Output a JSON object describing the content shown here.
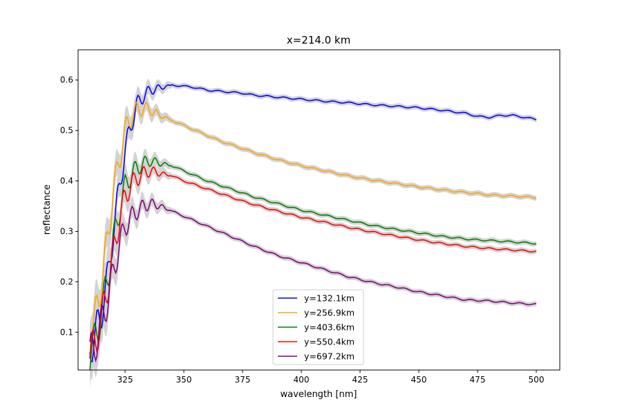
{
  "chart_data": {
    "type": "line",
    "title": "x=214.0 km",
    "xlabel": "wavelength [nm]",
    "ylabel": "reflectance",
    "xlim": [
      305,
      510
    ],
    "ylim": [
      0.025,
      0.66
    ],
    "xticks": [
      325,
      350,
      375,
      400,
      425,
      450,
      475,
      500
    ],
    "yticks": [
      0.1,
      0.2,
      0.3,
      0.4,
      0.5,
      0.6
    ],
    "legend_position": "lower-center",
    "grid": false,
    "band_color": "#d3d3d3",
    "series": [
      {
        "name": "y=132.1km",
        "color": "#0000ff",
        "points": [
          [
            310,
            0.07
          ],
          [
            312,
            0.09
          ],
          [
            315,
            0.14
          ],
          [
            318,
            0.22
          ],
          [
            320,
            0.3
          ],
          [
            323,
            0.4
          ],
          [
            325,
            0.46
          ],
          [
            328,
            0.52
          ],
          [
            330,
            0.55
          ],
          [
            333,
            0.57
          ],
          [
            336,
            0.58
          ],
          [
            340,
            0.585
          ],
          [
            345,
            0.59
          ],
          [
            350,
            0.588
          ],
          [
            355,
            0.585
          ],
          [
            360,
            0.58
          ],
          [
            365,
            0.578
          ],
          [
            370,
            0.576
          ],
          [
            375,
            0.574
          ],
          [
            380,
            0.57
          ],
          [
            390,
            0.566
          ],
          [
            400,
            0.562
          ],
          [
            410,
            0.558
          ],
          [
            420,
            0.555
          ],
          [
            430,
            0.551
          ],
          [
            440,
            0.548
          ],
          [
            450,
            0.545
          ],
          [
            460,
            0.54
          ],
          [
            470,
            0.534
          ],
          [
            475,
            0.528
          ],
          [
            480,
            0.526
          ],
          [
            485,
            0.53
          ],
          [
            490,
            0.53
          ],
          [
            495,
            0.526
          ],
          [
            500,
            0.522
          ]
        ]
      },
      {
        "name": "y=256.9km",
        "color": "#ffa500",
        "points": [
          [
            310,
            0.09
          ],
          [
            312,
            0.12
          ],
          [
            315,
            0.2
          ],
          [
            318,
            0.3
          ],
          [
            320,
            0.38
          ],
          [
            323,
            0.45
          ],
          [
            325,
            0.5
          ],
          [
            328,
            0.53
          ],
          [
            330,
            0.54
          ],
          [
            333,
            0.545
          ],
          [
            336,
            0.54
          ],
          [
            340,
            0.53
          ],
          [
            345,
            0.52
          ],
          [
            350,
            0.51
          ],
          [
            355,
            0.5
          ],
          [
            360,
            0.49
          ],
          [
            365,
            0.48
          ],
          [
            370,
            0.472
          ],
          [
            375,
            0.464
          ],
          [
            380,
            0.456
          ],
          [
            390,
            0.442
          ],
          [
            400,
            0.43
          ],
          [
            410,
            0.42
          ],
          [
            420,
            0.41
          ],
          [
            430,
            0.402
          ],
          [
            440,
            0.395
          ],
          [
            450,
            0.388
          ],
          [
            460,
            0.382
          ],
          [
            470,
            0.377
          ],
          [
            475,
            0.375
          ],
          [
            480,
            0.372
          ],
          [
            490,
            0.37
          ],
          [
            500,
            0.367
          ]
        ]
      },
      {
        "name": "y=403.6km",
        "color": "#008000",
        "points": [
          [
            310,
            0.06
          ],
          [
            312,
            0.08
          ],
          [
            315,
            0.14
          ],
          [
            318,
            0.22
          ],
          [
            320,
            0.28
          ],
          [
            323,
            0.35
          ],
          [
            325,
            0.39
          ],
          [
            328,
            0.415
          ],
          [
            330,
            0.425
          ],
          [
            333,
            0.435
          ],
          [
            336,
            0.44
          ],
          [
            340,
            0.435
          ],
          [
            345,
            0.43
          ],
          [
            350,
            0.42
          ],
          [
            355,
            0.41
          ],
          [
            360,
            0.4
          ],
          [
            365,
            0.392
          ],
          [
            370,
            0.384
          ],
          [
            375,
            0.376
          ],
          [
            380,
            0.368
          ],
          [
            390,
            0.355
          ],
          [
            400,
            0.342
          ],
          [
            410,
            0.332
          ],
          [
            420,
            0.322
          ],
          [
            430,
            0.312
          ],
          [
            440,
            0.304
          ],
          [
            450,
            0.297
          ],
          [
            460,
            0.29
          ],
          [
            470,
            0.285
          ],
          [
            475,
            0.283
          ],
          [
            480,
            0.282
          ],
          [
            490,
            0.279
          ],
          [
            500,
            0.276
          ]
        ]
      },
      {
        "name": "y=550.4km",
        "color": "#ff0000",
        "points": [
          [
            310,
            0.055
          ],
          [
            312,
            0.075
          ],
          [
            315,
            0.13
          ],
          [
            318,
            0.2
          ],
          [
            320,
            0.26
          ],
          [
            323,
            0.33
          ],
          [
            325,
            0.37
          ],
          [
            328,
            0.395
          ],
          [
            330,
            0.405
          ],
          [
            333,
            0.415
          ],
          [
            336,
            0.42
          ],
          [
            340,
            0.415
          ],
          [
            345,
            0.41
          ],
          [
            350,
            0.4
          ],
          [
            355,
            0.392
          ],
          [
            360,
            0.384
          ],
          [
            365,
            0.376
          ],
          [
            370,
            0.368
          ],
          [
            375,
            0.36
          ],
          [
            380,
            0.353
          ],
          [
            390,
            0.34
          ],
          [
            400,
            0.328
          ],
          [
            410,
            0.318
          ],
          [
            420,
            0.308
          ],
          [
            430,
            0.299
          ],
          [
            440,
            0.291
          ],
          [
            450,
            0.283
          ],
          [
            460,
            0.276
          ],
          [
            470,
            0.27
          ],
          [
            475,
            0.268
          ],
          [
            480,
            0.266
          ],
          [
            490,
            0.263
          ],
          [
            500,
            0.26
          ]
        ]
      },
      {
        "name": "y=697.2km",
        "color": "#800080",
        "points": [
          [
            310,
            0.055
          ],
          [
            312,
            0.07
          ],
          [
            315,
            0.12
          ],
          [
            318,
            0.17
          ],
          [
            320,
            0.22
          ],
          [
            323,
            0.28
          ],
          [
            325,
            0.31
          ],
          [
            328,
            0.33
          ],
          [
            330,
            0.34
          ],
          [
            333,
            0.35
          ],
          [
            336,
            0.355
          ],
          [
            340,
            0.35
          ],
          [
            345,
            0.34
          ],
          [
            350,
            0.33
          ],
          [
            355,
            0.32
          ],
          [
            360,
            0.31
          ],
          [
            365,
            0.3
          ],
          [
            370,
            0.29
          ],
          [
            375,
            0.28
          ],
          [
            380,
            0.27
          ],
          [
            390,
            0.252
          ],
          [
            400,
            0.238
          ],
          [
            410,
            0.224
          ],
          [
            420,
            0.21
          ],
          [
            430,
            0.199
          ],
          [
            440,
            0.19
          ],
          [
            450,
            0.18
          ],
          [
            460,
            0.172
          ],
          [
            470,
            0.164
          ],
          [
            480,
            0.162
          ],
          [
            490,
            0.158
          ],
          [
            500,
            0.155
          ]
        ]
      }
    ]
  }
}
